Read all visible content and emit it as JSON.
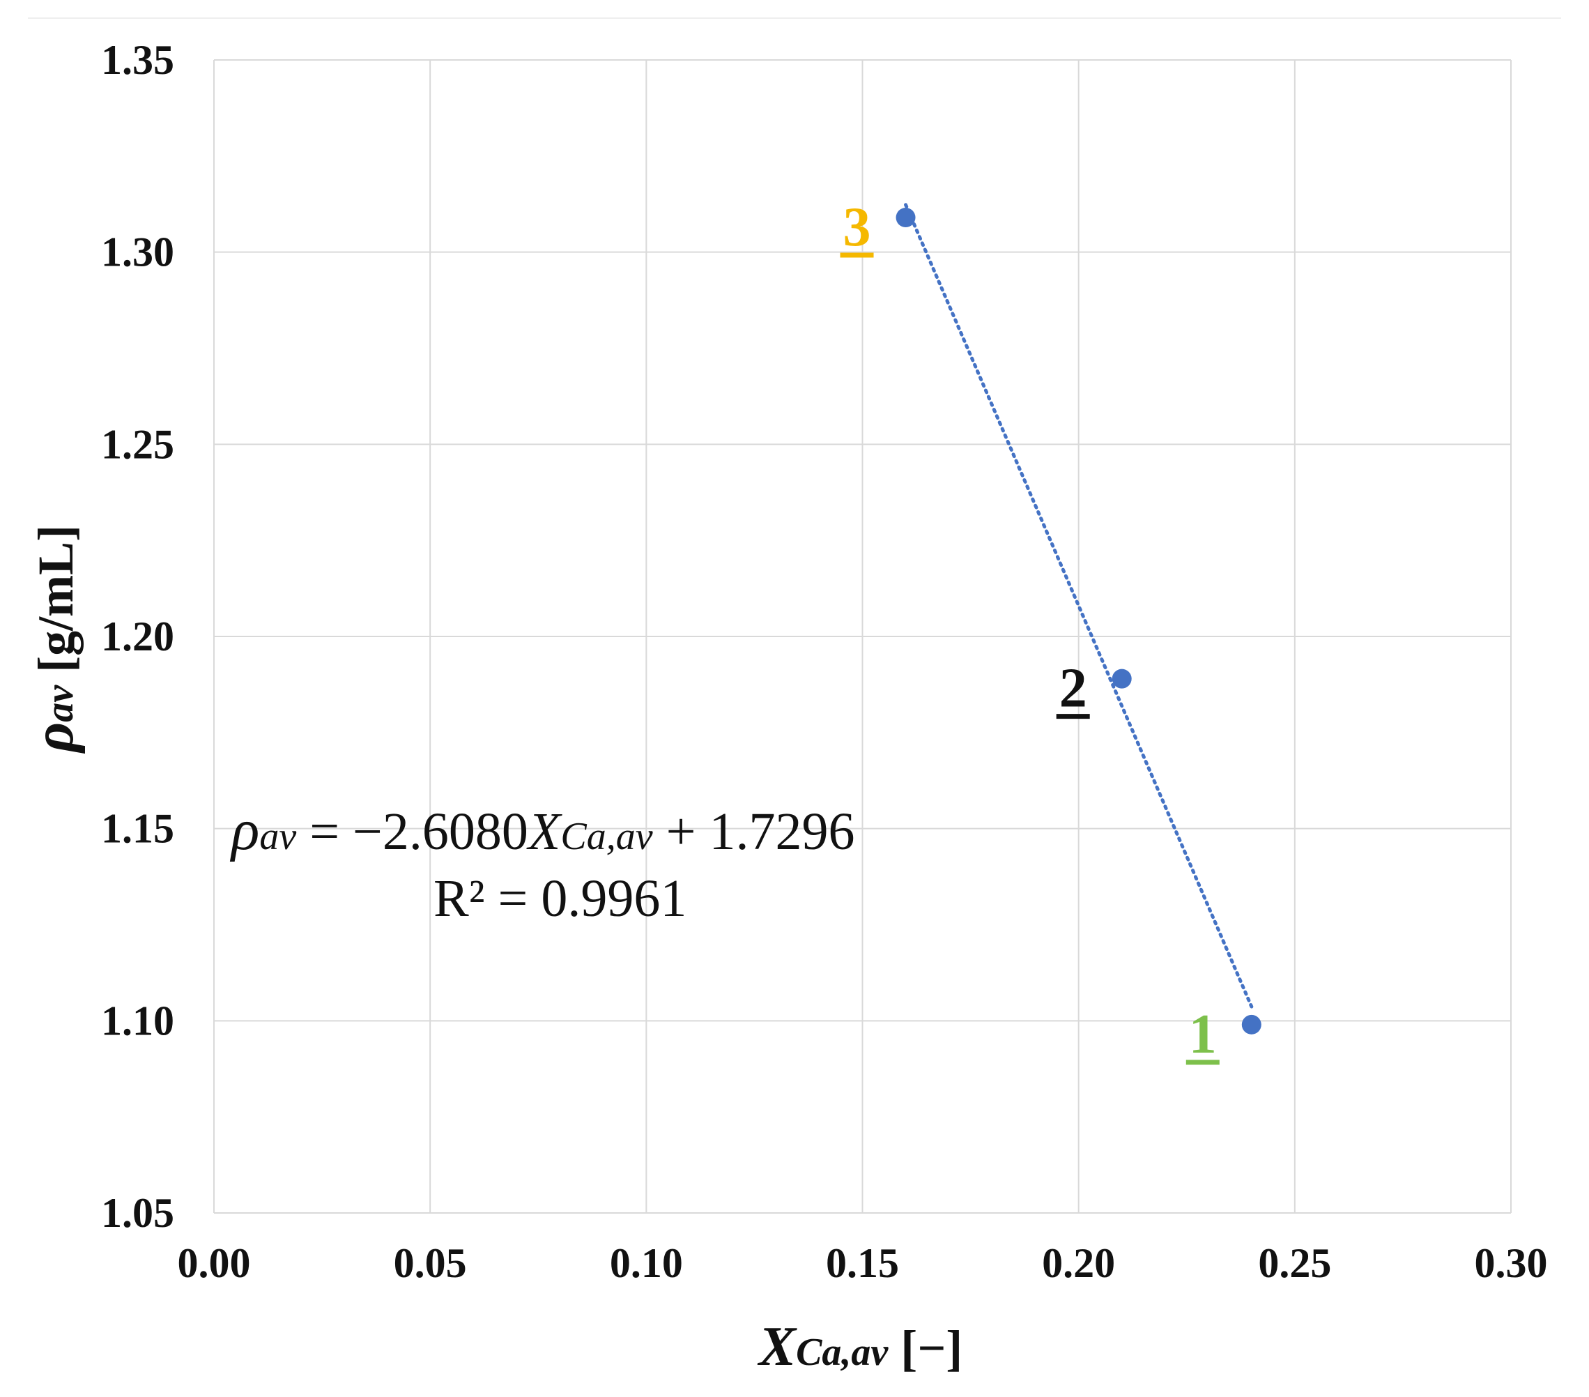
{
  "chart_data": {
    "type": "scatter",
    "title": "",
    "xlabel": {
      "main": "X",
      "subscript": "Ca,av",
      "unit": " [−]"
    },
    "ylabel": {
      "main": "ρ",
      "subscript": "av",
      "unit": " [g/mL]"
    },
    "xlim": [
      0.0,
      0.3
    ],
    "ylim": [
      1.05,
      1.35
    ],
    "xticks": [
      0.0,
      0.05,
      0.1,
      0.15,
      0.2,
      0.25,
      0.3
    ],
    "yticks": [
      1.05,
      1.1,
      1.15,
      1.2,
      1.25,
      1.3,
      1.35
    ],
    "xtick_labels": [
      "0.00",
      "0.05",
      "0.10",
      "0.15",
      "0.20",
      "0.25",
      "0.30"
    ],
    "ytick_labels": [
      "1.05",
      "1.10",
      "1.15",
      "1.20",
      "1.25",
      "1.30",
      "1.35"
    ],
    "grid": true,
    "series": [
      {
        "name": "samples",
        "color": "#4472C4",
        "points": [
          {
            "x": 0.24,
            "y": 1.099,
            "label": "1",
            "label_color": "#7DC04B"
          },
          {
            "x": 0.21,
            "y": 1.189,
            "label": "2",
            "label_color": "#111111"
          },
          {
            "x": 0.16,
            "y": 1.309,
            "label": "3",
            "label_color": "#F5B800"
          }
        ]
      }
    ],
    "trendline": {
      "type": "linear",
      "slope": -2.608,
      "intercept": 1.7296,
      "x_range": [
        0.16,
        0.24
      ],
      "style": "dotted",
      "color": "#4472C4",
      "equation": {
        "lhs": "ρ",
        "lhs_sub": "av",
        "mid": " = −2.6080",
        "var": "X",
        "var_sub": "Ca,av",
        "rhs": " + 1.7296"
      },
      "r2_text": "R² = 0.9961"
    }
  }
}
